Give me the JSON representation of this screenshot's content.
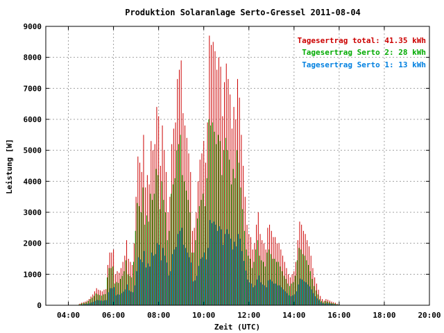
{
  "colors": {
    "total": "#cc0000",
    "serto2": "#00aa00",
    "serto1": "#0080e0",
    "grid": "#a0a0a0",
    "axis": "#000000"
  },
  "chart_data": {
    "type": "bar",
    "title": "Produktion Solaranlage Serto-Gressel 2011-08-04",
    "xlabel": "Zeit (UTC)",
    "ylabel": "Leistung [W]",
    "xlim": [
      3.0,
      20.0
    ],
    "ylim": [
      0,
      9000
    ],
    "x_ticks": [
      4,
      6,
      8,
      10,
      12,
      14,
      16,
      18,
      20
    ],
    "x_tick_labels": [
      "04:00",
      "06:00",
      "08:00",
      "10:00",
      "12:00",
      "14:00",
      "16:00",
      "18:00",
      "20:00"
    ],
    "y_ticks": [
      0,
      1000,
      2000,
      3000,
      4000,
      5000,
      6000,
      7000,
      8000,
      9000
    ],
    "y_tick_labels": [
      "0",
      "1000",
      "2000",
      "3000",
      "4000",
      "5000",
      "6000",
      "7000",
      "8000",
      "9000"
    ],
    "grid": true,
    "legend_position": "top-right",
    "legend": [
      {
        "key": "total",
        "label": "Tagesertrag total: 41.35 kWh"
      },
      {
        "key": "serto2",
        "label": "Tagesertrag Serto 2: 28 kWh"
      },
      {
        "key": "serto1",
        "label": "Tagesertrag Serto 1: 13 kWh"
      }
    ],
    "interval_hours": 0.08333,
    "x_start": 4.5,
    "series": [
      {
        "key": "total",
        "values": [
          50,
          80,
          100,
          120,
          150,
          200,
          280,
          350,
          450,
          550,
          500,
          480,
          450,
          500,
          520,
          1300,
          1700,
          1700,
          1800,
          1000,
          1100,
          1050,
          1200,
          1400,
          1600,
          2100,
          1500,
          1400,
          1300,
          2000,
          3500,
          4800,
          4600,
          4300,
          5500,
          3800,
          4200,
          3900,
          5300,
          5000,
          5200,
          6400,
          6100,
          4500,
          5800,
          5000,
          4300,
          3000,
          3500,
          5200,
          5700,
          5900,
          7300,
          7600,
          7900,
          6200,
          5800,
          5400,
          4900,
          4300,
          2400,
          2500,
          3000,
          4000,
          4700,
          4900,
          5300,
          4600,
          5900,
          8700,
          8400,
          8500,
          8200,
          7600,
          8000,
          7700,
          6100,
          7200,
          7800,
          7300,
          6800,
          5700,
          6400,
          6000,
          7300,
          6700,
          5500,
          4500,
          3500,
          2600,
          2300,
          2200,
          1800,
          2000,
          2600,
          3000,
          2300,
          2100,
          2000,
          1800,
          2500,
          2600,
          2400,
          2200,
          2200,
          2000,
          2000,
          1800,
          1600,
          1400,
          1200,
          1000,
          900,
          1000,
          1100,
          1400,
          2100,
          2700,
          2600,
          2400,
          2300,
          2100,
          1900,
          1600,
          1200,
          900,
          700,
          500,
          300,
          200,
          150,
          200,
          180,
          150,
          120,
          100,
          80,
          50,
          30
        ]
      },
      {
        "key": "serto2",
        "values": [
          30,
          50,
          70,
          80,
          100,
          140,
          200,
          240,
          300,
          380,
          350,
          330,
          310,
          350,
          360,
          900,
          1200,
          1200,
          1250,
          700,
          750,
          720,
          850,
          950,
          1100,
          1450,
          1000,
          950,
          900,
          1400,
          2400,
          3300,
          3200,
          3000,
          3800,
          2600,
          2900,
          2700,
          3600,
          3400,
          3600,
          4400,
          4200,
          3100,
          4000,
          3400,
          3000,
          2100,
          2400,
          3600,
          3900,
          4100,
          5000,
          5200,
          5500,
          4200,
          4000,
          3700,
          3400,
          3000,
          1700,
          1700,
          2100,
          2800,
          3200,
          3400,
          3600,
          3200,
          4100,
          6000,
          5800,
          5900,
          5600,
          5200,
          5500,
          5300,
          4200,
          5000,
          5400,
          5000,
          4700,
          3900,
          4400,
          4100,
          5000,
          4600,
          3800,
          3100,
          2400,
          1800,
          1600,
          1500,
          1200,
          1400,
          1800,
          2100,
          1600,
          1450,
          1400,
          1250,
          1700,
          1800,
          1650,
          1500,
          1500,
          1400,
          1400,
          1250,
          1100,
          950,
          850,
          700,
          620,
          700,
          750,
          950,
          1450,
          1850,
          1800,
          1650,
          1600,
          1450,
          1300,
          1100,
          850,
          620,
          480,
          350,
          200,
          140,
          100,
          140,
          120,
          100,
          80,
          70,
          55,
          35,
          20
        ]
      },
      {
        "key": "serto1",
        "values": [
          15,
          25,
          35,
          40,
          50,
          65,
          90,
          110,
          140,
          170,
          160,
          150,
          140,
          160,
          165,
          420,
          550,
          550,
          580,
          320,
          350,
          340,
          390,
          440,
          510,
          670,
          480,
          440,
          420,
          640,
          1100,
          1550,
          1480,
          1390,
          1750,
          1220,
          1350,
          1250,
          1700,
          1600,
          1650,
          2000,
          1950,
          1450,
          1850,
          1600,
          1380,
          960,
          1100,
          1650,
          1800,
          1880,
          2300,
          2400,
          2500,
          1950,
          1850,
          1700,
          1550,
          1380,
          770,
          800,
          950,
          1270,
          1500,
          1550,
          1700,
          1480,
          1850,
          2750,
          2650,
          2700,
          2600,
          2400,
          2550,
          2450,
          1950,
          2300,
          2450,
          2300,
          2150,
          1800,
          2050,
          1900,
          2300,
          2150,
          1750,
          1430,
          1120,
          830,
          740,
          700,
          580,
          640,
          830,
          960,
          740,
          670,
          640,
          580,
          800,
          830,
          770,
          700,
          700,
          640,
          640,
          580,
          510,
          450,
          390,
          320,
          290,
          320,
          350,
          450,
          670,
          860,
          830,
          770,
          740,
          670,
          610,
          510,
          390,
          290,
          220,
          160,
          100,
          65,
          50,
          65,
          58,
          48,
          40,
          32,
          25,
          16,
          10
        ]
      }
    ]
  }
}
